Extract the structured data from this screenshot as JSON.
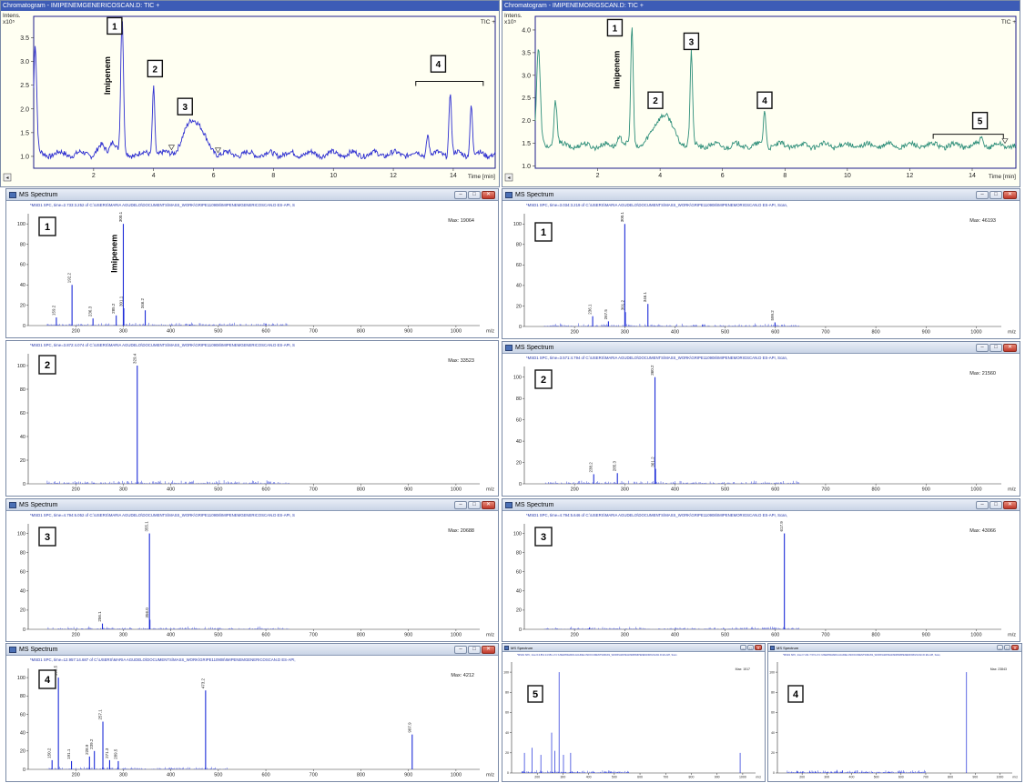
{
  "chart_data": [
    {
      "id": "chrom_left",
      "type": "line",
      "title": "Chromatogram - IMIPENEMGENERICOSCAN.D: TIC +",
      "trace_label": "TIC +",
      "ylabel": "Intens.",
      "y_multiplier": "x10⁵",
      "xlabel": "Time [min]",
      "xlim": [
        0,
        15.4
      ],
      "ylim": [
        0.75,
        3.95
      ],
      "xticks": [
        2,
        4,
        6,
        8,
        10,
        12,
        14
      ],
      "yticks": [
        1.0,
        1.5,
        2.0,
        2.5,
        3.0,
        3.5
      ],
      "color": "#2d2ed0",
      "baseline": 1.05,
      "peaks": [
        {
          "x": 0.05,
          "h": 2.3,
          "w": 0.05
        },
        {
          "x": 2.25,
          "h": 0.15,
          "w": 0.12
        },
        {
          "x": 2.65,
          "h": 0.3,
          "w": 0.1
        },
        {
          "x": 2.95,
          "h": 2.85,
          "w": 0.045
        },
        {
          "x": 4.0,
          "h": 1.45,
          "w": 0.04
        },
        {
          "x": 5.35,
          "h": 0.75,
          "w": 0.3
        },
        {
          "x": 13.15,
          "h": 0.45,
          "w": 0.04
        },
        {
          "x": 13.9,
          "h": 1.35,
          "w": 0.04
        },
        {
          "x": 14.6,
          "h": 1.05,
          "w": 0.04
        }
      ],
      "annotations": [
        {
          "label": "1",
          "x": 2.7,
          "y": 3.75
        },
        {
          "label": "2",
          "x": 4.05,
          "y": 2.85
        },
        {
          "label": "3",
          "x": 5.05,
          "y": 2.05
        },
        {
          "label": "4",
          "x": 13.5,
          "y": 2.95
        }
      ],
      "compound_label": {
        "text": "Imipenem",
        "x": 2.55,
        "y": 2.3
      },
      "bracket": {
        "x1": 12.75,
        "x2": 15.0,
        "y": 2.58
      },
      "markers": [
        {
          "x": 4.6,
          "y": 1.14
        },
        {
          "x": 6.15,
          "y": 1.08
        }
      ]
    },
    {
      "id": "chrom_right",
      "type": "line",
      "title": "Chromatogram - IMIPENEMORIGSCAN.D: TIC +",
      "trace_label": "TIC +",
      "ylabel": "Intens.",
      "y_multiplier": "x10⁵",
      "xlabel": "Time [min]",
      "xlim": [
        0,
        15.4
      ],
      "ylim": [
        0.95,
        4.3
      ],
      "xticks": [
        2,
        4,
        6,
        8,
        10,
        12,
        14
      ],
      "yticks": [
        1.0,
        1.5,
        2.0,
        2.5,
        3.0,
        3.5,
        4.0
      ],
      "color": "#2f8f7a",
      "baseline": 1.45,
      "peaks": [
        {
          "x": 0.1,
          "h": 2.1,
          "w": 0.06
        },
        {
          "x": 0.65,
          "h": 1.0,
          "w": 0.05
        },
        {
          "x": 2.7,
          "h": 0.2,
          "w": 0.08
        },
        {
          "x": 3.1,
          "h": 2.65,
          "w": 0.04
        },
        {
          "x": 4.1,
          "h": 0.7,
          "w": 0.28
        },
        {
          "x": 5.0,
          "h": 2.05,
          "w": 0.04
        },
        {
          "x": 7.35,
          "h": 0.8,
          "w": 0.04
        },
        {
          "x": 14.3,
          "h": 0.15,
          "w": 0.05
        }
      ],
      "annotations": [
        {
          "label": "1",
          "x": 2.55,
          "y": 4.05
        },
        {
          "label": "2",
          "x": 3.85,
          "y": 2.45
        },
        {
          "label": "3",
          "x": 5.0,
          "y": 3.75
        },
        {
          "label": "4",
          "x": 7.35,
          "y": 2.45
        },
        {
          "label": "5",
          "x": 14.25,
          "y": 2.0
        }
      ],
      "compound_label": {
        "text": "Imipenem",
        "x": 2.7,
        "y": 2.7
      },
      "bracket": {
        "x1": 12.75,
        "x2": 15.0,
        "y": 1.7
      },
      "markers": [
        {
          "x": 15.05,
          "y": 1.5
        }
      ]
    },
    {
      "id": "ms_left_1",
      "type": "bar",
      "window_title": "MS Spectrum",
      "info": "*MSD1 SPC, time=2.733:3.252 of C:\\USERS\\MARIA AGUDELO\\DOCUMENTS\\MASS_WORK\\GRIPE110908\\IMIPENEMGENERICOSCAN.D   ES-API, S",
      "max_label": "Max: 19064",
      "number": "1",
      "compound_label": "Imipenem",
      "xlabel": "m/z",
      "xlim": [
        100,
        1050
      ],
      "xticks": [
        200,
        300,
        400,
        500,
        600,
        700,
        800,
        900,
        1000
      ],
      "ylim": [
        0,
        110
      ],
      "yticks": [
        0,
        20,
        40,
        60,
        80,
        100
      ],
      "peaks": [
        [
          159.2,
          8,
          "159.2"
        ],
        [
          192.2,
          40,
          "192.2"
        ],
        [
          236.3,
          7,
          "236.3"
        ],
        [
          285.2,
          10,
          "285.2"
        ],
        [
          300.1,
          100,
          "300.1"
        ],
        [
          301.1,
          17,
          "301.1"
        ],
        [
          346.2,
          15,
          "346.2"
        ],
        [
          440,
          1,
          ""
        ],
        [
          600,
          2,
          ""
        ]
      ]
    },
    {
      "id": "ms_left_2",
      "type": "bar",
      "window_title": "",
      "info": "*MSD1 SPC, time=3.872:4.074 of C:\\USERS\\MARIA AGUDELO\\DOCUMENTS\\MASS_WORK\\GRIPE110908\\IMIPENEMGENERICOSCAN.D   ES-API, S",
      "max_label": "Max: 33523",
      "number": "2",
      "xlabel": "m/z",
      "xlim": [
        100,
        1050
      ],
      "xticks": [
        200,
        300,
        400,
        500,
        600,
        700,
        800,
        900,
        1000
      ],
      "ylim": [
        0,
        110
      ],
      "yticks": [
        0,
        20,
        40,
        60,
        80,
        100
      ],
      "peaks": [
        [
          238,
          1,
          ""
        ],
        [
          329.4,
          100,
          "329.4"
        ]
      ]
    },
    {
      "id": "ms_left_3",
      "type": "bar",
      "window_title": "MS Spectrum",
      "info": "*MSD1 SPC, time=4.794:6.052 of C:\\USERS\\MARIA AGUDELO\\DOCUMENTS\\MASS_WORK\\GRIPE110908\\IMIPENEMGENERICOSCAN.D   ES-API, S",
      "max_label": "Max: 20688",
      "number": "3",
      "xlabel": "m/z",
      "xlim": [
        100,
        1050
      ],
      "xticks": [
        200,
        300,
        400,
        500,
        600,
        700,
        800,
        900,
        1000
      ],
      "ylim": [
        0,
        110
      ],
      "yticks": [
        0,
        20,
        40,
        60,
        80,
        100
      ],
      "peaks": [
        [
          256.1,
          6,
          "256.1"
        ],
        [
          355.1,
          100,
          "355.1"
        ],
        [
          356.0,
          10,
          "356.0"
        ]
      ]
    },
    {
      "id": "ms_left_4",
      "type": "bar",
      "window_title": "MS Spectrum",
      "info": "*MSD1 SPC, time=12.957:14.687 of C:\\USERS\\MARIA AGUDELO\\DOCUMENTS\\MASS_WORK\\GRIPE110908\\IMIPENEMGENERICOSCAN.D   ES-API,",
      "max_label": "Max: 4212",
      "number": "4",
      "xlabel": "m/z",
      "xlim": [
        100,
        1050
      ],
      "xticks": [
        200,
        300,
        400,
        500,
        600,
        700,
        800,
        900,
        1000
      ],
      "ylim": [
        0,
        110
      ],
      "yticks": [
        0,
        20,
        40,
        60,
        80,
        100
      ],
      "peaks": [
        [
          150.2,
          10,
          "150.2"
        ],
        [
          163.5,
          100,
          "163.5"
        ],
        [
          191.1,
          9,
          "191.1"
        ],
        [
          228.9,
          14,
          "228.9"
        ],
        [
          239.2,
          20,
          "239.2"
        ],
        [
          257.1,
          52,
          "257.1"
        ],
        [
          271.3,
          10,
          "271.3"
        ],
        [
          289.5,
          9,
          "289.5"
        ],
        [
          473.2,
          86,
          "473.2"
        ],
        [
          907.9,
          38,
          "907.9"
        ]
      ]
    },
    {
      "id": "ms_right_1",
      "type": "bar",
      "window_title": "MS Spectrum",
      "info": "*MSD1 SPC, time=3.034:3.219 of C:\\USERS\\MARIA AGUDELO\\DOCUMENTS\\MASS_WORK\\GRIPE110908\\IMIPENEMORIGSCAN.D   ES-API, Scan,",
      "max_label": "Max: 46193",
      "number": "1",
      "xlabel": "m/z",
      "xlim": [
        100,
        1050
      ],
      "xticks": [
        200,
        300,
        400,
        500,
        600,
        700,
        800,
        900,
        1000
      ],
      "ylim": [
        0,
        110
      ],
      "yticks": [
        0,
        20,
        40,
        60,
        80,
        100
      ],
      "peaks": [
        [
          236.1,
          10,
          "236.1"
        ],
        [
          267.5,
          5,
          "267.5"
        ],
        [
          300.1,
          100,
          "300.1"
        ],
        [
          301.2,
          14,
          "301.2"
        ],
        [
          346.1,
          22,
          "346.1"
        ],
        [
          599.2,
          4,
          "599.2"
        ],
        [
          455,
          2,
          ""
        ]
      ]
    },
    {
      "id": "ms_right_2",
      "type": "bar",
      "window_title": "MS Spectrum",
      "info": "*MSD1 SPC, time=3.571:4.794 of C:\\USERS\\MARIA AGUDELO\\DOCUMENTS\\MASS_WORK\\GRIPE110908\\IMIPENEMORIGSCAN.D   ES-API, Scan,",
      "max_label": "Max: 21560",
      "number": "2",
      "xlabel": "m/z",
      "xlim": [
        100,
        1050
      ],
      "xticks": [
        200,
        300,
        400,
        500,
        600,
        700,
        800,
        900,
        1000
      ],
      "ylim": [
        0,
        110
      ],
      "yticks": [
        0,
        20,
        40,
        60,
        80,
        100
      ],
      "peaks": [
        [
          238.2,
          9,
          "238.2"
        ],
        [
          285.3,
          10,
          "285.3"
        ],
        [
          360.2,
          100,
          "360.2"
        ],
        [
          361.2,
          14,
          "361.2"
        ]
      ]
    },
    {
      "id": "ms_right_3",
      "type": "bar",
      "window_title": "MS Spectrum",
      "info": "*MSD1 SPC, time=4.794:5.646 of C:\\USERS\\MARIA AGUDELO\\DOCUMENTS\\MASS_WORK\\GRIPE110908\\IMIPENEMORIGSCAN.D   ES-API, Scan,",
      "max_label": "Max: 43066",
      "number": "3",
      "xlabel": "m/z",
      "xlim": [
        100,
        1050
      ],
      "xticks": [
        200,
        300,
        400,
        500,
        600,
        700,
        800,
        900,
        1000
      ],
      "ylim": [
        0,
        110
      ],
      "yticks": [
        0,
        20,
        40,
        60,
        80,
        100
      ],
      "peaks": [
        [
          617.9,
          100,
          "617.9"
        ],
        [
          230,
          2,
          ""
        ]
      ]
    },
    {
      "id": "ms_right_5",
      "type": "bar",
      "window_title": "MS Spectrum",
      "info": "*MSD1 SPC, time=13.861:14.951 of C:\\USERS\\MARIA AGUDELO\\DOCUMENTS\\MASS_WORK\\GRIPE110908\\IMIPENEMORIGSCAN.D   ES-API, Scan",
      "max_label": "Max: 1517",
      "number": "5",
      "xlabel": "m/z",
      "xlim": [
        100,
        1050
      ],
      "xticks": [
        200,
        300,
        400,
        500,
        600,
        700,
        800,
        900,
        1000
      ],
      "ylim": [
        0,
        110
      ],
      "yticks": [
        0,
        20,
        40,
        60,
        80,
        100
      ],
      "peaks": [
        [
          150,
          20,
          ""
        ],
        [
          180,
          25,
          ""
        ],
        [
          214,
          18,
          ""
        ],
        [
          256,
          40,
          ""
        ],
        [
          268,
          22,
          ""
        ],
        [
          285,
          100,
          ""
        ],
        [
          302,
          18,
          ""
        ],
        [
          330,
          20,
          ""
        ],
        [
          990,
          20,
          ""
        ]
      ]
    },
    {
      "id": "ms_right_4",
      "type": "bar",
      "window_title": "MS Spectrum",
      "info": "*MSD1 SPC, time=7.221:7.574 of C:\\USERS\\MARIA AGUDELO\\DOCUMENTS\\MASS_WORK\\GRIPE110908\\IMIPENEMORIGSCAN.D   ES-API, Scan,",
      "max_label": "Max: 23843",
      "number": "4",
      "xlabel": "m/z",
      "xlim": [
        100,
        1050
      ],
      "xticks": [
        200,
        300,
        400,
        500,
        600,
        700,
        800,
        900,
        1000
      ],
      "ylim": [
        0,
        110
      ],
      "yticks": [
        0,
        20,
        40,
        60,
        80,
        100
      ],
      "peaks": [
        [
          865,
          100,
          ""
        ],
        [
          230,
          2,
          ""
        ]
      ]
    }
  ]
}
